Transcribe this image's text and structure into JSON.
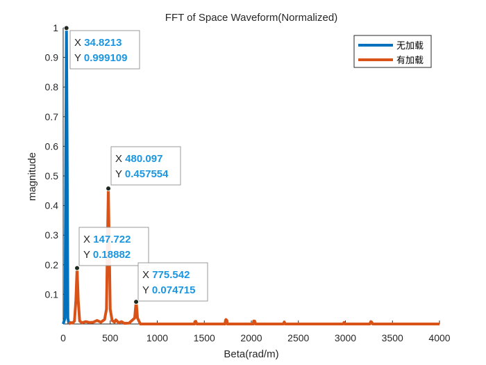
{
  "chart_data": {
    "type": "line",
    "title": "FFT of Space Waveform(Normalized)",
    "xlabel": "Beta(rad/m)",
    "ylabel": "magnitude",
    "xlim": [
      0,
      4000
    ],
    "ylim": [
      0,
      1
    ],
    "x_ticks": [
      0,
      500,
      1000,
      1500,
      2000,
      2500,
      3000,
      3500,
      4000
    ],
    "y_ticks": [
      "0.1",
      "0.2",
      "0.3",
      "0.4",
      "0.5",
      "0.6",
      "0.7",
      "0.8",
      "0.9",
      "1"
    ],
    "legend_position": "top-right",
    "grid": false,
    "series": [
      {
        "name": "无加载",
        "color": "#0072bd",
        "points": [
          [
            0,
            0
          ],
          [
            20,
            0.02
          ],
          [
            28,
            0.6
          ],
          [
            34.8213,
            0.999109
          ],
          [
            42,
            0.6
          ],
          [
            50,
            0.02
          ],
          [
            60,
            0
          ]
        ]
      },
      {
        "name": "有加载",
        "color": "#d95319",
        "points": [
          [
            60,
            0
          ],
          [
            80,
            0.005
          ],
          [
            100,
            0.003
          ],
          [
            120,
            0.01
          ],
          [
            135,
            0.08
          ],
          [
            147.722,
            0.18882
          ],
          [
            160,
            0.08
          ],
          [
            175,
            0.01
          ],
          [
            200,
            0.004
          ],
          [
            240,
            0.008
          ],
          [
            280,
            0.005
          ],
          [
            320,
            0.006
          ],
          [
            360,
            0.012
          ],
          [
            400,
            0.006
          ],
          [
            440,
            0.015
          ],
          [
            460,
            0.05
          ],
          [
            472,
            0.3
          ],
          [
            480.097,
            0.457554
          ],
          [
            488,
            0.3
          ],
          [
            500,
            0.05
          ],
          [
            520,
            0.012
          ],
          [
            545,
            0.006
          ],
          [
            560,
            0.014
          ],
          [
            590,
            0.004
          ],
          [
            620,
            0.008
          ],
          [
            650,
            0.002
          ],
          [
            700,
            0.003
          ],
          [
            760,
            0.02
          ],
          [
            768,
            0.05
          ],
          [
            775.542,
            0.074715
          ],
          [
            783,
            0.05
          ],
          [
            790,
            0.02
          ],
          [
            820,
            0
          ],
          [
            1395,
            0
          ],
          [
            1400,
            0.008
          ],
          [
            1410,
            0.009
          ],
          [
            1420,
            0
          ],
          [
            1720,
            0
          ],
          [
            1725,
            0.012
          ],
          [
            1730,
            0.015
          ],
          [
            1740,
            0.012
          ],
          [
            1745,
            0
          ],
          [
            2020,
            0
          ],
          [
            2025,
            0.01
          ],
          [
            2035,
            0.01
          ],
          [
            2045,
            0
          ],
          [
            2340,
            0
          ],
          [
            2350,
            0.007
          ],
          [
            2360,
            0
          ],
          [
            2975,
            0
          ],
          [
            2985,
            0.005
          ],
          [
            2995,
            0
          ],
          [
            3260,
            0
          ],
          [
            3270,
            0.008
          ],
          [
            3280,
            0.006
          ],
          [
            3290,
            0
          ],
          [
            4000,
            0
          ]
        ]
      }
    ],
    "datatips": [
      {
        "x": "34.8213",
        "y": "0.999109",
        "xv": 34.8213,
        "yv": 0.999109
      },
      {
        "x": "480.097",
        "y": "0.457554",
        "xv": 480.097,
        "yv": 0.457554
      },
      {
        "x": "147.722",
        "y": "0.18882",
        "xv": 147.722,
        "yv": 0.18882
      },
      {
        "x": "775.542",
        "y": "0.074715",
        "xv": 775.542,
        "yv": 0.074715
      }
    ]
  }
}
